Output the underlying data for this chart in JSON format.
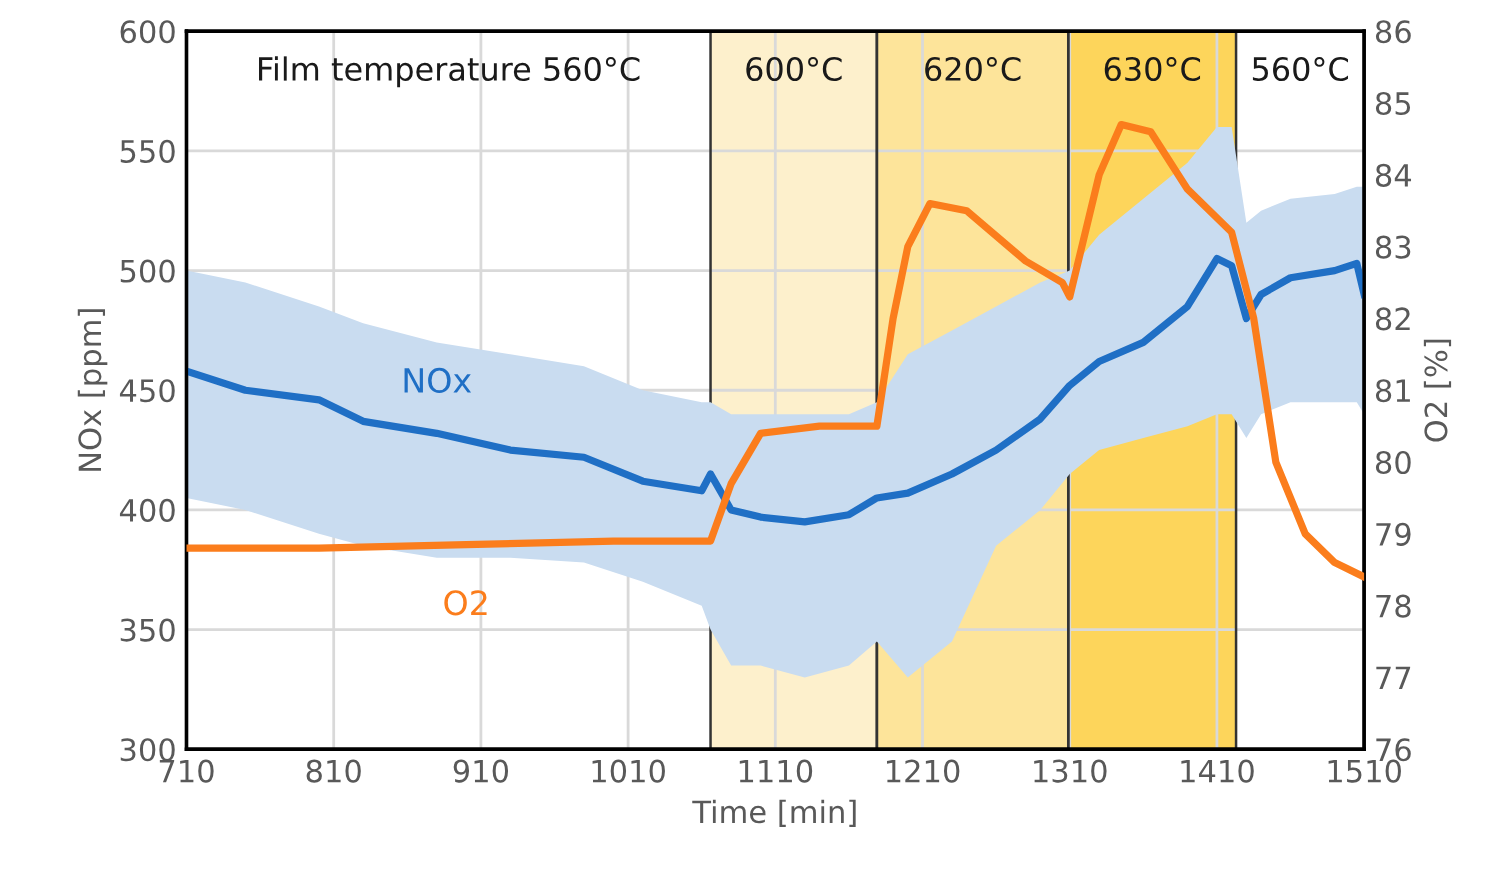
{
  "chart_data": {
    "type": "line",
    "xlabel": "Time [min]",
    "ylabel": "NOx [ppm]",
    "y2label": "O2 [%]",
    "xlim": [
      710,
      1510
    ],
    "xticks": [
      710,
      810,
      910,
      1010,
      1110,
      1210,
      1310,
      1410,
      1510
    ],
    "ylim": [
      300,
      600
    ],
    "yticks": [
      300,
      350,
      400,
      450,
      500,
      550,
      600
    ],
    "y2lim": [
      76,
      86
    ],
    "y2ticks": [
      76,
      77,
      78,
      79,
      80,
      81,
      82,
      83,
      84,
      85,
      86
    ],
    "grid": true,
    "legend": false,
    "marker": "none",
    "line_style": "solid",
    "series": [
      {
        "name": "NOx",
        "color": "#1f6fc5",
        "x": [
          710,
          750,
          800,
          830,
          880,
          930,
          980,
          1020,
          1060,
          1066,
          1080,
          1100,
          1130,
          1160,
          1179,
          1200,
          1230,
          1260,
          1290,
          1310,
          1330,
          1360,
          1390,
          1410,
          1420,
          1430,
          1440,
          1460,
          1490,
          1505,
          1510
        ],
        "values": [
          458,
          450,
          446,
          437,
          432,
          425,
          422,
          412,
          408,
          415,
          400,
          397,
          395,
          398,
          405,
          407,
          415,
          425,
          438,
          452,
          462,
          470,
          485,
          505,
          502,
          480,
          490,
          497,
          500,
          503,
          490
        ],
        "upper": [
          500,
          495,
          485,
          478,
          470,
          465,
          460,
          450,
          445,
          445,
          440,
          440,
          440,
          440,
          445,
          465,
          475,
          485,
          495,
          500,
          515,
          530,
          545,
          560,
          560,
          520,
          525,
          530,
          532,
          535,
          535
        ],
        "lower": [
          405,
          400,
          390,
          385,
          380,
          380,
          378,
          370,
          360,
          350,
          335,
          335,
          330,
          335,
          345,
          330,
          345,
          385,
          400,
          415,
          425,
          430,
          435,
          440,
          440,
          430,
          440,
          445,
          445,
          445,
          440
        ]
      },
      {
        "name": "O2",
        "color": "#fb7d1c",
        "axis": "y2",
        "x": [
          710,
          800,
          900,
          1000,
          1066,
          1080,
          1100,
          1140,
          1179,
          1190,
          1200,
          1215,
          1240,
          1280,
          1305,
          1310,
          1330,
          1345,
          1365,
          1390,
          1420,
          1435,
          1450,
          1470,
          1490,
          1510
        ],
        "values": [
          78.8,
          78.8,
          78.85,
          78.9,
          78.9,
          79.7,
          80.4,
          80.5,
          80.5,
          82.0,
          83.0,
          83.6,
          83.5,
          82.8,
          82.5,
          82.3,
          84.0,
          84.7,
          84.6,
          83.8,
          83.2,
          82.0,
          80.0,
          79.0,
          78.6,
          78.4
        ]
      }
    ],
    "bands": [
      {
        "axis": "x",
        "from": 1066,
        "to": 1179,
        "label": "600°C",
        "color": "#fdf0cc"
      },
      {
        "axis": "x",
        "from": 1179,
        "to": 1309,
        "label": "620°C",
        "color": "#fde49a"
      },
      {
        "axis": "x",
        "from": 1309,
        "to": 1423,
        "label": "630°C",
        "color": "#fdd55b"
      }
    ],
    "annotations": [
      "Film temperature 560°C",
      "560°C"
    ]
  }
}
